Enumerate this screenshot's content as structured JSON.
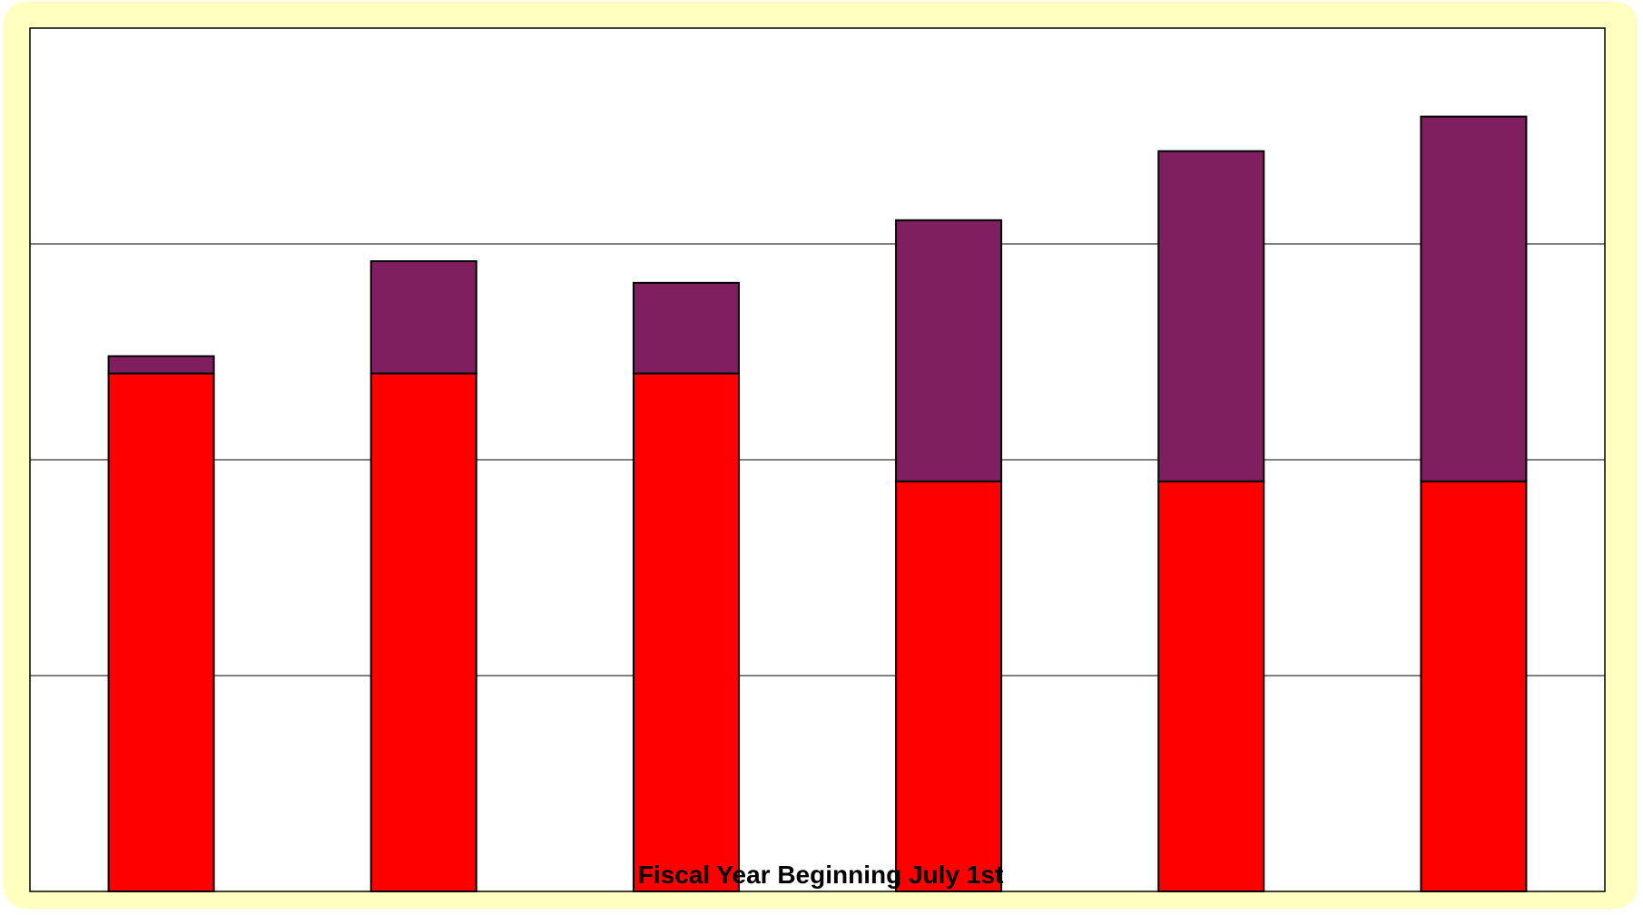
{
  "chart_data": {
    "type": "bar",
    "stacked": true,
    "categories": [
      "",
      "",
      "",
      "",
      "",
      ""
    ],
    "series": [
      {
        "values": [
          2.4,
          2.4,
          2.4,
          1.9,
          1.9,
          1.9
        ]
      },
      {
        "values": [
          0.08,
          0.52,
          0.42,
          1.21,
          1.53,
          1.69
        ]
      }
    ],
    "xlabel": "Fiscal Year Beginning July 1st",
    "ylabel": "",
    "ylim": [
      0,
      4
    ],
    "y_gridlines": [
      1,
      2,
      3,
      4
    ],
    "grid": true,
    "legend": "none",
    "colors": {
      "series": [
        "#ff0000",
        "#7f1f5f"
      ],
      "frame_background": "#ffffc0",
      "plot_background": "#ffffff",
      "gridline": "#000000",
      "bar_outline": "#000000"
    }
  }
}
